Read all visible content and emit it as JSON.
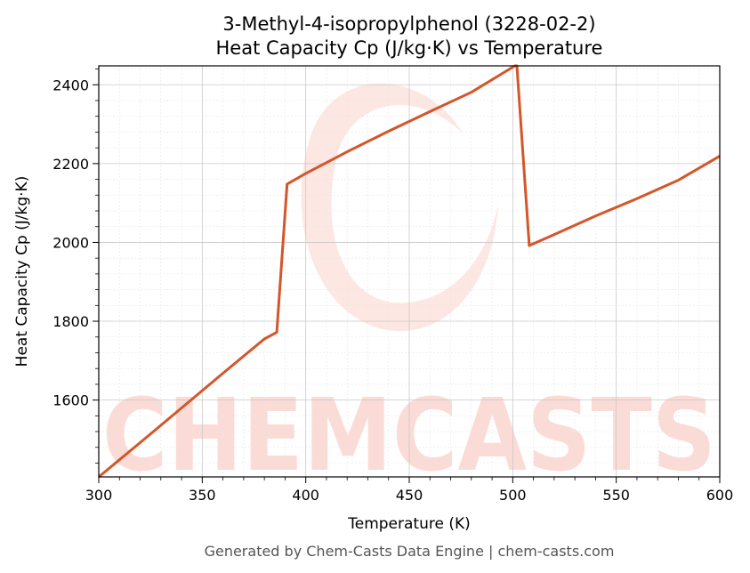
{
  "chart_data": {
    "type": "line",
    "title": "3-Methyl-4-isopropylphenol (3228-02-2)",
    "subtitle": "Heat Capacity Cp (J/kg·K) vs Temperature",
    "xlabel": "Temperature (K)",
    "ylabel": "Heat Capacity Cp (J/kg·K)",
    "xlim": [
      300,
      600
    ],
    "ylim": [
      1405,
      2448
    ],
    "x_ticks": [
      300,
      350,
      400,
      450,
      500,
      550,
      600
    ],
    "y_ticks": [
      1600,
      1800,
      2000,
      2200,
      2400
    ],
    "grid": true,
    "legend": "none",
    "series": [
      {
        "color": "#d4562a",
        "x": [
          300,
          320,
          340,
          360,
          380,
          386,
          391,
          400,
          420,
          440,
          460,
          480,
          501,
          502,
          508,
          520,
          540,
          560,
          580,
          600
        ],
        "y": [
          1405,
          1492,
          1580,
          1668,
          1755,
          1772,
          2148,
          2175,
          2230,
          2282,
          2332,
          2381,
          2448,
          2448,
          1992,
          2020,
          2067,
          2111,
          2158,
          2219
        ]
      }
    ]
  },
  "watermark": {
    "text": "CHEMCASTS",
    "color": "#fbd5cf"
  },
  "footer": "Generated by Chem-Casts Data Engine | chem-casts.com"
}
